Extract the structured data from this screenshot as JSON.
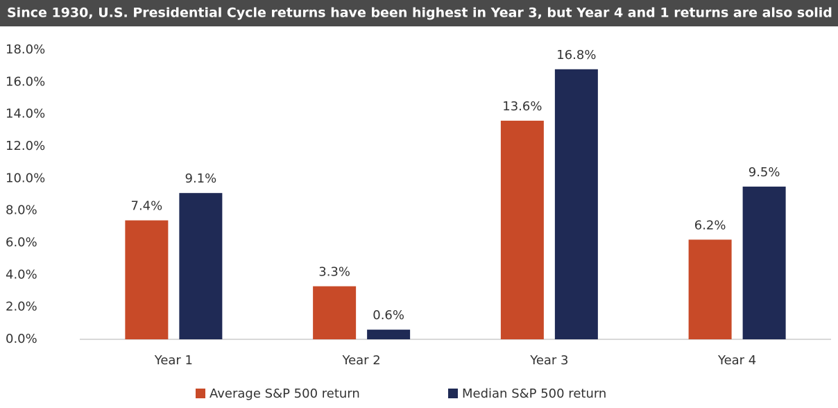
{
  "chart_data": {
    "type": "bar",
    "title": "Since 1930, U.S. Presidential Cycle returns have been highest in Year 3, but Year 4 and 1 returns are also solid",
    "categories": [
      "Year 1",
      "Year 2",
      "Year 3",
      "Year 4"
    ],
    "series": [
      {
        "name": "Average S&P 500 return",
        "color": "#c84a28",
        "values": [
          7.4,
          3.3,
          13.6,
          6.2
        ],
        "value_labels": [
          "7.4%",
          "3.3%",
          "13.6%",
          "6.2%"
        ]
      },
      {
        "name": "Median S&P 500 return",
        "color": "#1f2a55",
        "values": [
          9.1,
          0.6,
          16.8,
          9.5
        ],
        "value_labels": [
          "9.1%",
          "0.6%",
          "16.8%",
          "9.5%"
        ]
      }
    ],
    "ylim": [
      0,
      18
    ],
    "yticks": [
      {
        "value": 0,
        "label": "0.0%"
      },
      {
        "value": 2,
        "label": "2.0%"
      },
      {
        "value": 4,
        "label": "4.0%"
      },
      {
        "value": 6,
        "label": "6.0%"
      },
      {
        "value": 8,
        "label": "8.0%"
      },
      {
        "value": 10,
        "label": "10.0%"
      },
      {
        "value": 12,
        "label": "12.0%"
      },
      {
        "value": 14,
        "label": "14.0%"
      },
      {
        "value": 16,
        "label": "16.0%"
      },
      {
        "value": 18,
        "label": "18.0%"
      }
    ],
    "grid": false,
    "legend": "bottom"
  }
}
